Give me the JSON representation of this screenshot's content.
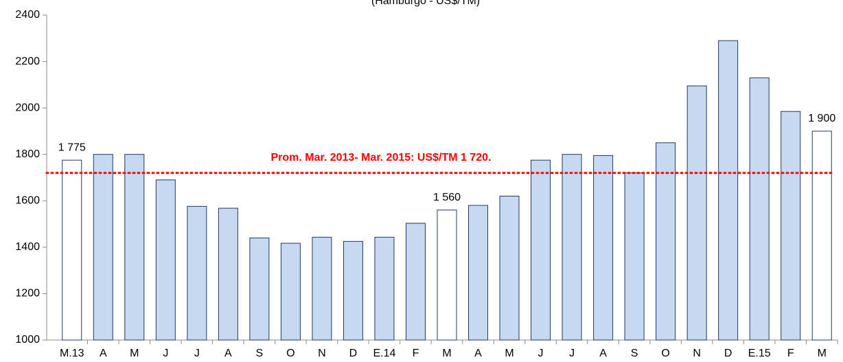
{
  "chart_data": {
    "type": "bar",
    "subtitle": "(Hamburgo - US$/TM)",
    "categories": [
      "M.13",
      "A",
      "M",
      "J",
      "J",
      "A",
      "S",
      "O",
      "N",
      "D",
      "E.14",
      "F",
      "M",
      "A",
      "M",
      "J",
      "J",
      "A",
      "S",
      "O",
      "N",
      "D",
      "E.15",
      "F",
      "M"
    ],
    "values": [
      1775,
      1800,
      1800,
      1690,
      1576,
      1568,
      1440,
      1417,
      1443,
      1425,
      1443,
      1503,
      1560,
      1580,
      1620,
      1775,
      1800,
      1795,
      1720,
      1850,
      2095,
      2290,
      2130,
      1985,
      1900
    ],
    "value_labels": [
      "1 775",
      null,
      null,
      null,
      null,
      null,
      null,
      null,
      null,
      null,
      null,
      null,
      "1 560",
      null,
      null,
      null,
      null,
      null,
      null,
      null,
      null,
      null,
      null,
      null,
      "1 900"
    ],
    "colors": [
      "#ffffff",
      "#c6d9f1",
      "#c6d9f1",
      "#c6d9f1",
      "#c6d9f1",
      "#c6d9f1",
      "#c6d9f1",
      "#c6d9f1",
      "#c6d9f1",
      "#c6d9f1",
      "#c6d9f1",
      "#c6d9f1",
      "#ffffff",
      "#c6d9f1",
      "#c6d9f1",
      "#c6d9f1",
      "#c6d9f1",
      "#c6d9f1",
      "#c6d9f1",
      "#c6d9f1",
      "#c6d9f1",
      "#c6d9f1",
      "#c6d9f1",
      "#c6d9f1",
      "#ffffff"
    ],
    "edge_color": "#1f3864",
    "ylim": [
      1000,
      2400
    ],
    "yticks": [
      1000,
      1200,
      1400,
      1600,
      1800,
      2000,
      2200,
      2400
    ],
    "reference_line": {
      "value": 1720,
      "color": "#ff0000",
      "label": "Prom. Mar. 2013- Mar. 2015: US$/TM 1 720."
    }
  }
}
